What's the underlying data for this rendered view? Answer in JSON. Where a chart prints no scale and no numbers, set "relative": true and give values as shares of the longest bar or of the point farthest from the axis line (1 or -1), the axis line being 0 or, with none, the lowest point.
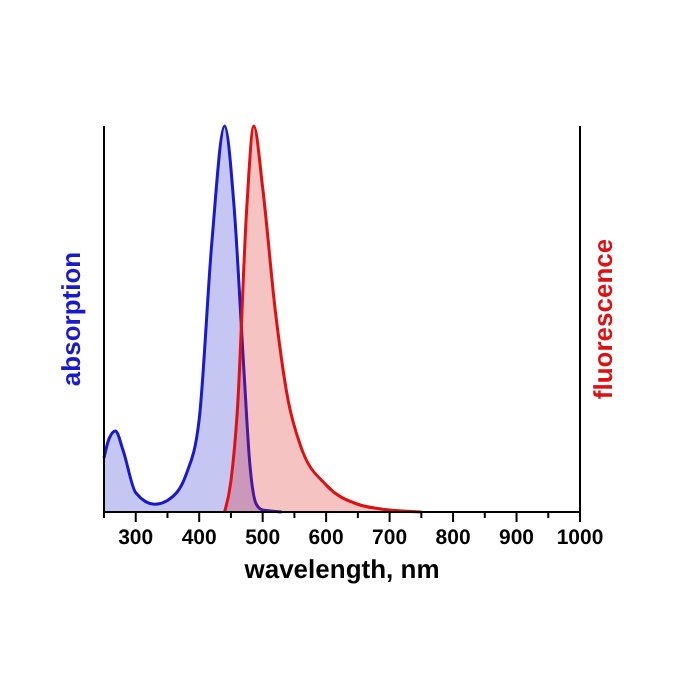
{
  "chart_data": {
    "type": "area",
    "relative": true,
    "xlabel": "wavelength, nm",
    "ylabel": "absorption",
    "y2label": "fluorescence",
    "xlim": [
      250,
      1000
    ],
    "xticks": [
      {
        "value": 250,
        "label": null
      },
      300,
      {
        "value": 350,
        "label": null
      },
      400,
      {
        "value": 450,
        "label": null
      },
      500,
      {
        "value": 550,
        "label": null
      },
      600,
      {
        "value": 650,
        "label": null
      },
      700,
      {
        "value": 750,
        "label": null
      },
      800,
      {
        "value": 850,
        "label": null
      },
      900,
      {
        "value": 950,
        "label": null
      },
      1000
    ],
    "tick_labels": "x",
    "grid": false,
    "series": [
      {
        "color": "#1a1acc",
        "axis": "y",
        "x": [
          250,
          258,
          268,
          280,
          300,
          330,
          350,
          380,
          400,
          420,
          440,
          455,
          470,
          480,
          490,
          500,
          530
        ],
        "values": [
          0.14,
          0.19,
          0.21,
          0.16,
          0.05,
          0.02,
          0.03,
          0.1,
          0.24,
          0.7,
          1,
          0.79,
          0.38,
          0.12,
          0.02,
          0.005,
          0
        ]
      },
      {
        "color": "#dd1111",
        "axis": "y2",
        "x": [
          440,
          450,
          460,
          475,
          486,
          500,
          520,
          540,
          560,
          600,
          650,
          700,
          750
        ],
        "values": [
          0,
          0.08,
          0.26,
          0.79,
          1,
          0.84,
          0.52,
          0.29,
          0.17,
          0.07,
          0.02,
          0.005,
          0
        ]
      }
    ]
  }
}
